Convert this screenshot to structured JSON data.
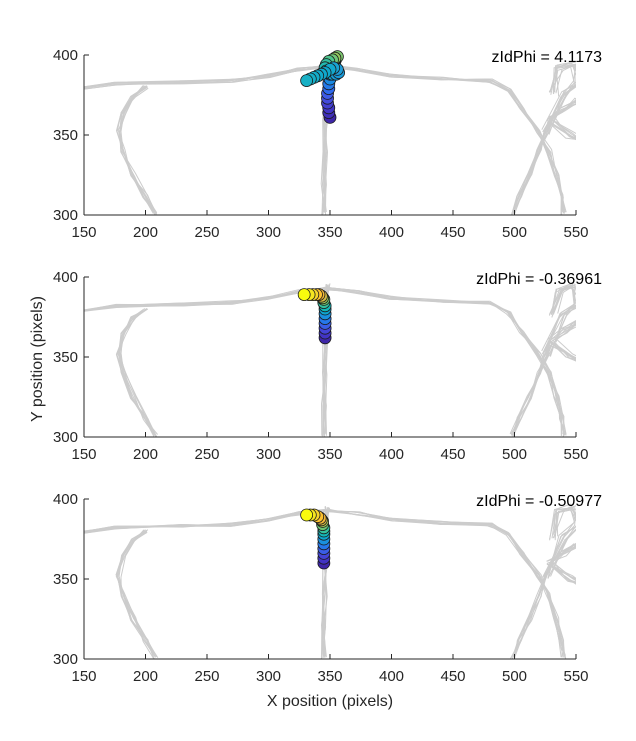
{
  "figure": {
    "xlabel": "X position (pixels)",
    "ylabel": "Y position (pixels)"
  },
  "colors": {
    "track": "#cccccc",
    "axis": "#262626",
    "marker_edge": "#1a1a1a"
  },
  "chart_data": [
    {
      "type": "scatter",
      "annotation": "zIdPhi = 4.1173",
      "xlim": [
        150,
        550
      ],
      "ylim": [
        300,
        400
      ],
      "xticks": [
        150,
        200,
        250,
        300,
        350,
        400,
        450,
        500,
        550
      ],
      "yticks": [
        300,
        350,
        400
      ],
      "points": [
        {
          "x": 350,
          "y": 361,
          "c": "#3e26a8"
        },
        {
          "x": 349,
          "y": 364,
          "c": "#4030b8"
        },
        {
          "x": 349,
          "y": 367,
          "c": "#4236c6"
        },
        {
          "x": 348,
          "y": 370,
          "c": "#4440d0"
        },
        {
          "x": 348,
          "y": 373,
          "c": "#444bdb"
        },
        {
          "x": 348,
          "y": 376,
          "c": "#3e5ae6"
        },
        {
          "x": 349,
          "y": 379,
          "c": "#2f6aed"
        },
        {
          "x": 349,
          "y": 382,
          "c": "#2479e8"
        },
        {
          "x": 350,
          "y": 385,
          "c": "#1a88e0"
        },
        {
          "x": 350,
          "y": 388,
          "c": "#1596d7"
        },
        {
          "x": 351,
          "y": 390,
          "c": "#0da5cf"
        },
        {
          "x": 352,
          "y": 392,
          "c": "#10b1c3"
        },
        {
          "x": 353,
          "y": 394,
          "c": "#1cb9b3"
        },
        {
          "x": 354,
          "y": 396,
          "c": "#35c09d"
        },
        {
          "x": 355,
          "y": 398,
          "c": "#58c585"
        },
        {
          "x": 356,
          "y": 399,
          "c": "#7dc66f"
        },
        {
          "x": 354,
          "y": 398,
          "c": "#95c85f"
        },
        {
          "x": 352,
          "y": 397,
          "c": "#72c678"
        },
        {
          "x": 349,
          "y": 396,
          "c": "#4fc48c"
        },
        {
          "x": 347,
          "y": 394,
          "c": "#33bfa0"
        },
        {
          "x": 346,
          "y": 392,
          "c": "#22b9b0"
        },
        {
          "x": 347,
          "y": 390,
          "c": "#14b0c2"
        },
        {
          "x": 349,
          "y": 389,
          "c": "#0fa8cc"
        },
        {
          "x": 352,
          "y": 388,
          "c": "#12a2d2"
        },
        {
          "x": 355,
          "y": 388,
          "c": "#169dd6"
        },
        {
          "x": 357,
          "y": 389,
          "c": "#199ad8"
        },
        {
          "x": 356,
          "y": 391,
          "c": "#1c9cd8"
        },
        {
          "x": 353,
          "y": 392,
          "c": "#19a3d3"
        },
        {
          "x": 350,
          "y": 391,
          "c": "#13a8cd"
        },
        {
          "x": 346,
          "y": 389,
          "c": "#0ea9cc"
        },
        {
          "x": 343,
          "y": 388,
          "c": "#0fa8cd"
        },
        {
          "x": 340,
          "y": 387,
          "c": "#11aacb"
        },
        {
          "x": 337,
          "y": 386,
          "c": "#13acc9"
        },
        {
          "x": 334,
          "y": 385,
          "c": "#15aec7"
        },
        {
          "x": 331,
          "y": 384,
          "c": "#18b0c5"
        }
      ]
    },
    {
      "type": "scatter",
      "annotation": "zIdPhi = -0.36961",
      "xlim": [
        150,
        550
      ],
      "ylim": [
        300,
        400
      ],
      "xticks": [
        150,
        200,
        250,
        300,
        350,
        400,
        450,
        500,
        550
      ],
      "yticks": [
        300,
        350,
        400
      ],
      "points": [
        {
          "x": 346,
          "y": 362,
          "c": "#3e26a8"
        },
        {
          "x": 346,
          "y": 365,
          "c": "#4234c4"
        },
        {
          "x": 346,
          "y": 368,
          "c": "#4444d6"
        },
        {
          "x": 346,
          "y": 371,
          "c": "#3a5ee7"
        },
        {
          "x": 346,
          "y": 374,
          "c": "#2678eb"
        },
        {
          "x": 346,
          "y": 377,
          "c": "#1a90dd"
        },
        {
          "x": 346,
          "y": 380,
          "c": "#0da5cf"
        },
        {
          "x": 346,
          "y": 382,
          "c": "#14b6b7"
        },
        {
          "x": 345,
          "y": 384,
          "c": "#33c09e"
        },
        {
          "x": 345,
          "y": 386,
          "c": "#6bc573"
        },
        {
          "x": 344,
          "y": 387,
          "c": "#a3c655"
        },
        {
          "x": 343,
          "y": 388,
          "c": "#d2ba45"
        },
        {
          "x": 341,
          "y": 389,
          "c": "#f0b838"
        },
        {
          "x": 339,
          "y": 389,
          "c": "#fdc12e"
        },
        {
          "x": 336,
          "y": 389,
          "c": "#f6d52a"
        },
        {
          "x": 333,
          "y": 389,
          "c": "#f5e520"
        },
        {
          "x": 329,
          "y": 389,
          "c": "#f9fb0e"
        }
      ]
    },
    {
      "type": "scatter",
      "annotation": "zIdPhi = -0.50977",
      "xlim": [
        150,
        550
      ],
      "ylim": [
        300,
        400
      ],
      "xticks": [
        150,
        200,
        250,
        300,
        350,
        400,
        450,
        500,
        550
      ],
      "yticks": [
        300,
        350,
        400
      ],
      "points": [
        {
          "x": 345,
          "y": 360,
          "c": "#3e26a8"
        },
        {
          "x": 345,
          "y": 363,
          "c": "#4234c4"
        },
        {
          "x": 345,
          "y": 366,
          "c": "#4444d6"
        },
        {
          "x": 345,
          "y": 369,
          "c": "#3a5ee7"
        },
        {
          "x": 345,
          "y": 372,
          "c": "#2678eb"
        },
        {
          "x": 345,
          "y": 375,
          "c": "#1a90dd"
        },
        {
          "x": 345,
          "y": 378,
          "c": "#0da5cf"
        },
        {
          "x": 345,
          "y": 380,
          "c": "#14b6b7"
        },
        {
          "x": 345,
          "y": 382,
          "c": "#33c09e"
        },
        {
          "x": 344,
          "y": 384,
          "c": "#6bc573"
        },
        {
          "x": 344,
          "y": 386,
          "c": "#a3c655"
        },
        {
          "x": 343,
          "y": 387,
          "c": "#d2ba45"
        },
        {
          "x": 342,
          "y": 388,
          "c": "#f0b838"
        },
        {
          "x": 340,
          "y": 389,
          "c": "#fdc12e"
        },
        {
          "x": 337,
          "y": 390,
          "c": "#f6d52a"
        },
        {
          "x": 334,
          "y": 390,
          "c": "#f5e520"
        },
        {
          "x": 331,
          "y": 390,
          "c": "#f9fb0e"
        }
      ]
    }
  ]
}
